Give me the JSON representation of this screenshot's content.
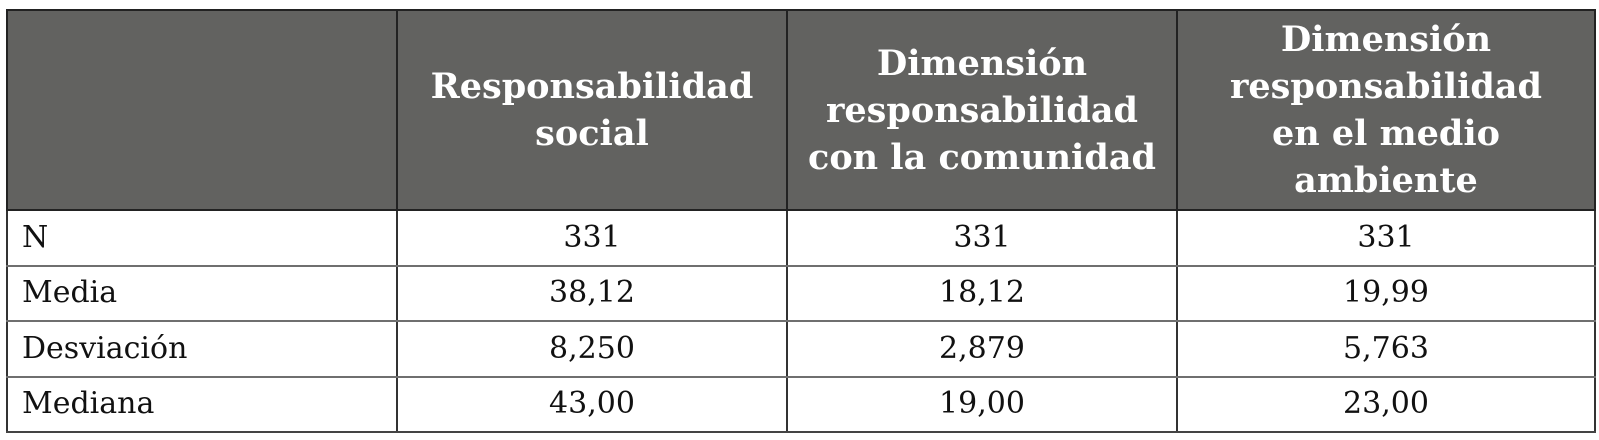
{
  "table": {
    "headers": [
      "",
      "Responsabilidad\nsocial",
      "Dimensión\nresponsabilidad\ncon la comunidad",
      "Dimensión\nresponsabilidad\nen el medio\nambiente"
    ],
    "rows": [
      {
        "label": "N",
        "values": [
          "331",
          "331",
          "331"
        ]
      },
      {
        "label": "Media",
        "values": [
          "38,12",
          "18,12",
          "19,99"
        ]
      },
      {
        "label": "Desviación",
        "values": [
          "8,250",
          "2,879",
          "5,763"
        ]
      },
      {
        "label": "Mediana",
        "values": [
          "43,00",
          "19,00",
          "23,00"
        ]
      }
    ]
  }
}
